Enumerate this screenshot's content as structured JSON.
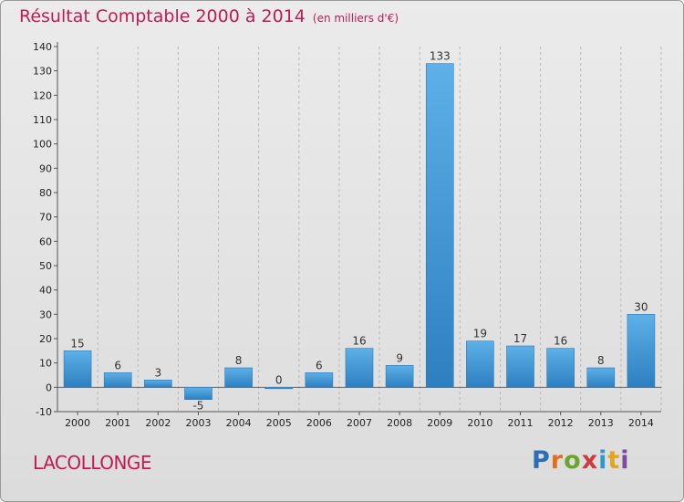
{
  "header": {
    "title": "Résultat Comptable 2000 à 2014",
    "unit": "(en milliers d'€)"
  },
  "footer": {
    "commune": "LACOLLONGE",
    "logo": "Proxiti"
  },
  "colors": {
    "title": "#c11a55",
    "bar_top": "#5eb0e8",
    "bar_bottom": "#2d7fc0"
  },
  "chart_data": {
    "type": "bar",
    "title": "Résultat Comptable 2000 à 2014",
    "subtitle": "(en milliers d'€)",
    "categories": [
      "2000",
      "2001",
      "2002",
      "2003",
      "2004",
      "2005",
      "2006",
      "2007",
      "2008",
      "2009",
      "2010",
      "2011",
      "2012",
      "2013",
      "2014"
    ],
    "values": [
      15,
      6,
      3,
      -5,
      8,
      0,
      6,
      16,
      9,
      133,
      19,
      17,
      16,
      8,
      30
    ],
    "ylim": [
      -10,
      140
    ],
    "yticks": [
      -10,
      0,
      10,
      20,
      30,
      40,
      50,
      60,
      70,
      80,
      90,
      100,
      110,
      120,
      130,
      140
    ],
    "grid": "vertical-dashed",
    "legend": "none"
  }
}
